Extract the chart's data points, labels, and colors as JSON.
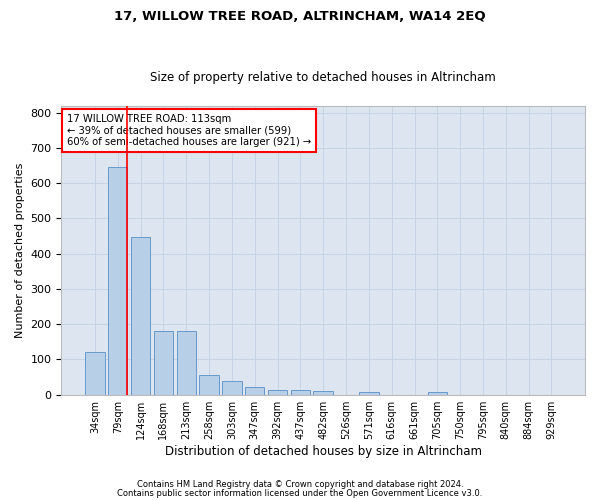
{
  "title": "17, WILLOW TREE ROAD, ALTRINCHAM, WA14 2EQ",
  "subtitle": "Size of property relative to detached houses in Altrincham",
  "xlabel": "Distribution of detached houses by size in Altrincham",
  "ylabel": "Number of detached properties",
  "bar_color": "#b8cfe8",
  "bar_edge_color": "#6699cc",
  "grid_color": "#c8d4e4",
  "background_color": "#dde6f0",
  "categories": [
    "34sqm",
    "79sqm",
    "124sqm",
    "168sqm",
    "213sqm",
    "258sqm",
    "303sqm",
    "347sqm",
    "392sqm",
    "437sqm",
    "482sqm",
    "526sqm",
    "571sqm",
    "616sqm",
    "661sqm",
    "705sqm",
    "750sqm",
    "795sqm",
    "840sqm",
    "884sqm",
    "929sqm"
  ],
  "bar_heights": [
    122,
    645,
    447,
    180,
    180,
    57,
    40,
    22,
    12,
    13,
    11,
    0,
    9,
    0,
    0,
    9,
    0,
    0,
    0,
    0,
    0
  ],
  "ylim": [
    0,
    820
  ],
  "yticks": [
    0,
    100,
    200,
    300,
    400,
    500,
    600,
    700,
    800
  ],
  "redline_x": 1.42,
  "annotation_line1": "17 WILLOW TREE ROAD: 113sqm",
  "annotation_line2": "← 39% of detached houses are smaller (599)",
  "annotation_line3": "60% of semi-detached houses are larger (921) →",
  "footnote1": "Contains HM Land Registry data © Crown copyright and database right 2024.",
  "footnote2": "Contains public sector information licensed under the Open Government Licence v3.0."
}
